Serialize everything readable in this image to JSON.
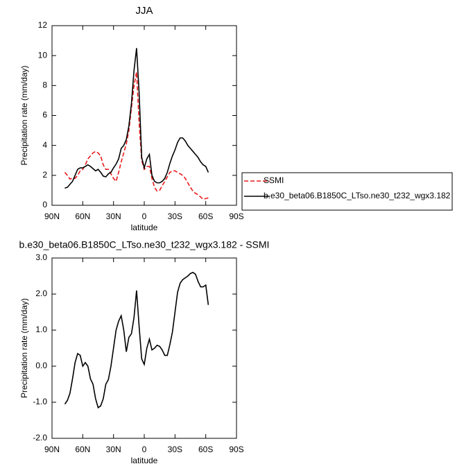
{
  "chart_data": [
    {
      "type": "line",
      "title": "JJA",
      "x_label": "latitude",
      "y_label": "Precipitation rate (mm/day)",
      "x": [
        77.5,
        75,
        72.5,
        70,
        67.5,
        65,
        62.5,
        60,
        57.5,
        55,
        52.5,
        50,
        47.5,
        45,
        42.5,
        40,
        37.5,
        35,
        32.5,
        30,
        27.5,
        25,
        22.5,
        20,
        17.5,
        15,
        12.5,
        10,
        7.5,
        5,
        2.5,
        0,
        -2.5,
        -5,
        -7.5,
        -10,
        -12.5,
        -15,
        -17.5,
        -20,
        -22.5,
        -25,
        -27.5,
        -30,
        -32.5,
        -35,
        -37.5,
        -40,
        -42.5,
        -45,
        -47.5,
        -50,
        -52.5,
        -55,
        -57.5,
        -60,
        -62.5
      ],
      "series": [
        {
          "name": "SSMI",
          "color": "#e8191b",
          "linestyle": "dashed",
          "values": [
            2.2,
            2.0,
            1.75,
            1.8,
            1.8,
            2.0,
            2.3,
            2.4,
            2.7,
            3.1,
            3.3,
            3.5,
            3.6,
            3.5,
            3.3,
            2.7,
            2.4,
            2.4,
            2.1,
            1.8,
            1.6,
            2.2,
            2.9,
            3.5,
            4.1,
            5.0,
            6.5,
            8.0,
            8.9,
            5.5,
            3.0,
            2.4,
            2.6,
            2.6,
            1.8,
            1.2,
            0.95,
            1.0,
            1.3,
            1.6,
            1.9,
            2.2,
            2.3,
            2.3,
            2.2,
            2.1,
            2.0,
            1.8,
            1.5,
            1.2,
            0.95,
            0.8,
            0.7,
            0.55,
            0.4,
            0.45,
            0.5
          ]
        },
        {
          "name": "b.e30_beta06.B1850C_LTso.ne30_t232_wgx3.182",
          "color": "#000000",
          "linestyle": "solid",
          "values": [
            1.15,
            1.2,
            1.4,
            1.6,
            2.0,
            2.4,
            2.5,
            2.5,
            2.6,
            2.7,
            2.6,
            2.45,
            2.3,
            2.4,
            2.2,
            1.95,
            1.9,
            2.1,
            2.2,
            2.5,
            2.75,
            3.1,
            3.8,
            4.0,
            4.4,
            5.3,
            6.8,
            9.0,
            10.5,
            7.5,
            3.2,
            2.5,
            3.1,
            3.4,
            2.0,
            1.6,
            1.5,
            1.5,
            1.6,
            1.8,
            2.2,
            2.8,
            3.3,
            3.7,
            4.2,
            4.5,
            4.5,
            4.3,
            4.0,
            3.8,
            3.6,
            3.4,
            3.2,
            2.9,
            2.7,
            2.6,
            2.2
          ]
        }
      ],
      "xlim": [
        90,
        -90
      ],
      "xticks": [
        {
          "value": 90,
          "label": "90N"
        },
        {
          "value": 60,
          "label": "60N"
        },
        {
          "value": 30,
          "label": "30N"
        },
        0,
        {
          "value": -30,
          "label": "30S"
        },
        {
          "value": -60,
          "label": "60S"
        },
        {
          "value": -90,
          "label": "90S"
        }
      ],
      "ylim": [
        0,
        12
      ],
      "yticks": [
        0,
        2,
        4,
        6,
        8,
        10,
        12
      ],
      "legend": "right"
    },
    {
      "type": "line",
      "title": "b.e30_beta06.B1850C_LTso.ne30_t232_wgx3.182 - SSMI",
      "x_label": "latitude",
      "y_label": "Precipitation rate (mm/day)",
      "x": [
        77.5,
        75,
        72.5,
        70,
        67.5,
        65,
        62.5,
        60,
        57.5,
        55,
        52.5,
        50,
        47.5,
        45,
        42.5,
        40,
        37.5,
        35,
        32.5,
        30,
        27.5,
        25,
        22.5,
        20,
        17.5,
        15,
        12.5,
        10,
        7.5,
        5,
        2.5,
        0,
        -2.5,
        -5,
        -7.5,
        -10,
        -12.5,
        -15,
        -17.5,
        -20,
        -22.5,
        -25,
        -27.5,
        -30,
        -32.5,
        -35,
        -37.5,
        -40,
        -42.5,
        -45,
        -47.5,
        -50,
        -52.5,
        -55,
        -57.5,
        -60,
        -62.5
      ],
      "values": [
        -1.05,
        -0.95,
        -0.75,
        -0.35,
        0.1,
        0.35,
        0.3,
        0.0,
        0.1,
        0.0,
        -0.35,
        -0.5,
        -0.9,
        -1.15,
        -1.1,
        -0.9,
        -0.5,
        -0.37,
        0.0,
        0.5,
        1.0,
        1.25,
        1.4,
        1.0,
        0.4,
        0.8,
        0.9,
        1.35,
        2.1,
        1.1,
        0.2,
        0.05,
        0.5,
        0.75,
        0.45,
        0.5,
        0.58,
        0.55,
        0.45,
        0.3,
        0.3,
        0.6,
        0.95,
        1.5,
        2.05,
        2.3,
        2.4,
        2.45,
        2.5,
        2.57,
        2.6,
        2.55,
        2.35,
        2.2,
        2.2,
        2.25,
        1.7
      ],
      "color": "#000000",
      "xlim": [
        90,
        -90
      ],
      "xticks": [
        {
          "value": 90,
          "label": "90N"
        },
        {
          "value": 60,
          "label": "60N"
        },
        {
          "value": 30,
          "label": "30N"
        },
        0,
        {
          "value": -30,
          "label": "30S"
        },
        {
          "value": -60,
          "label": "60S"
        },
        {
          "value": -90,
          "label": "90S"
        }
      ],
      "ylim": [
        -2,
        3
      ],
      "yticks": [
        {
          "value": -2,
          "label": "-2.0"
        },
        {
          "value": -1,
          "label": "-1.0"
        },
        {
          "value": 0,
          "label": "0.0"
        },
        {
          "value": 1,
          "label": "1.0"
        },
        {
          "value": 2,
          "label": "2.0"
        },
        {
          "value": 3,
          "label": "3.0"
        }
      ]
    }
  ]
}
